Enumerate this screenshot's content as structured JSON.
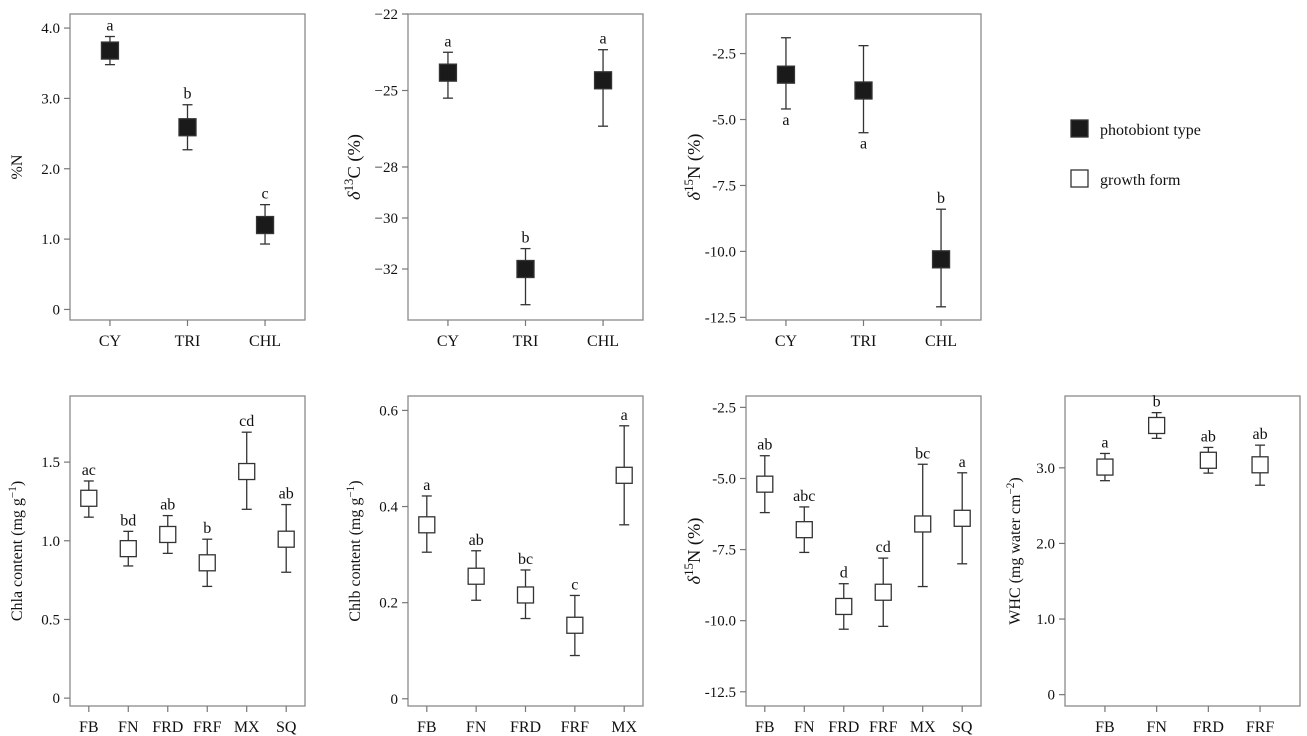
{
  "legend": {
    "items": [
      {
        "label": "photobiont type",
        "marker": "filled"
      },
      {
        "label": "growth form",
        "marker": "open"
      }
    ]
  },
  "colors": {
    "filled_marker": "#1a1a1a",
    "open_marker_fill": "#ffffff",
    "marker_stroke": "#333333",
    "frame": "#8a8a8a"
  },
  "chart_data": [
    {
      "id": "N",
      "type": "scatter",
      "grouping": "photobiont type",
      "marker": "filled",
      "ylabel_parts": [
        {
          "t": "%N"
        }
      ],
      "ylim": [
        -0.15,
        4.2
      ],
      "yticks": [
        0,
        1.0,
        2.0,
        3.0,
        4.0
      ],
      "ytick_labels": [
        "0",
        "1.0",
        "2.0",
        "3.0",
        "4.0"
      ],
      "categories": [
        "CY",
        "TRI",
        "CHL"
      ],
      "values": [
        3.68,
        2.59,
        1.2
      ],
      "error_low": [
        3.48,
        2.27,
        0.93
      ],
      "error_high": [
        3.88,
        2.91,
        1.49
      ],
      "letters": [
        "a",
        "b",
        "c"
      ],
      "letter_pos": [
        "above",
        "above",
        "above"
      ]
    },
    {
      "id": "d13C",
      "type": "scatter",
      "grouping": "photobiont type",
      "marker": "filled",
      "ylabel_parts": [
        {
          "t": "δ",
          "i": true
        },
        {
          "t": "13",
          "sup": true
        },
        {
          "t": "C (%)"
        }
      ],
      "ylim": [
        -34.0,
        -22.0
      ],
      "yticks": [
        -22,
        -25,
        -28,
        -30,
        -32
      ],
      "ytick_labels": [
        "−22",
        "−25",
        "−28",
        "−30",
        "−32"
      ],
      "categories": [
        "CY",
        "TRI",
        "CHL"
      ],
      "values": [
        -24.3,
        -32.0,
        -24.6
      ],
      "error_low": [
        -25.3,
        -33.4,
        -26.4
      ],
      "error_high": [
        -23.5,
        -31.2,
        -23.4
      ],
      "letters": [
        "a",
        "b",
        "a"
      ],
      "letter_pos": [
        "above",
        "above",
        "above"
      ]
    },
    {
      "id": "d15N_photobiont",
      "type": "scatter",
      "grouping": "photobiont type",
      "marker": "filled",
      "ylabel_parts": [
        {
          "t": "δ",
          "i": true
        },
        {
          "t": "15",
          "sup": true
        },
        {
          "t": "N (%)"
        }
      ],
      "ylim": [
        -12.6,
        -1.0
      ],
      "yticks": [
        -2.5,
        -5.0,
        -7.5,
        -10.0,
        -12.5
      ],
      "ytick_labels": [
        "-2.5",
        "-5.0",
        "-7.5",
        "-10.0",
        "-12.5"
      ],
      "categories": [
        "CY",
        "TRI",
        "CHL"
      ],
      "values": [
        -3.3,
        -3.9,
        -10.3
      ],
      "error_low": [
        -4.6,
        -5.5,
        -12.1
      ],
      "error_high": [
        -1.9,
        -2.2,
        -8.4
      ],
      "letters": [
        "a",
        "a",
        "b"
      ],
      "letter_pos": [
        "below",
        "below",
        "above"
      ]
    },
    {
      "id": "Chla",
      "type": "scatter",
      "grouping": "growth form",
      "marker": "open",
      "ylabel_parts": [
        {
          "t": "Chla content (mg g"
        },
        {
          "t": "−1",
          "sup": true
        },
        {
          "t": ")"
        }
      ],
      "ylim": [
        -0.05,
        1.92
      ],
      "yticks": [
        0,
        0.5,
        1.0,
        1.5
      ],
      "ytick_labels": [
        "0",
        "0.5",
        "1.0",
        "1.5"
      ],
      "categories": [
        "FB",
        "FN",
        "FRD",
        "FRF",
        "MX",
        "SQ"
      ],
      "values": [
        1.27,
        0.95,
        1.04,
        0.86,
        1.44,
        1.01
      ],
      "error_low": [
        1.15,
        0.84,
        0.92,
        0.71,
        1.2,
        0.8
      ],
      "error_high": [
        1.38,
        1.06,
        1.16,
        1.01,
        1.69,
        1.23
      ],
      "letters": [
        "ac",
        "bd",
        "ab",
        "b",
        "cd",
        "ab"
      ],
      "letter_pos": [
        "above",
        "above",
        "above",
        "above",
        "above",
        "above"
      ]
    },
    {
      "id": "Chlb",
      "type": "scatter",
      "grouping": "growth form",
      "marker": "open",
      "ylabel_parts": [
        {
          "t": "Chlb content (mg g"
        },
        {
          "t": "−1",
          "sup": true
        },
        {
          "t": ")"
        }
      ],
      "ylim": [
        -0.015,
        0.63
      ],
      "yticks": [
        0,
        0.2,
        0.4,
        0.6
      ],
      "ytick_labels": [
        "0",
        "0.2",
        "0.4",
        "0.6"
      ],
      "categories": [
        "FB",
        "FN",
        "FRD",
        "FRF",
        "MX"
      ],
      "values": [
        0.362,
        0.255,
        0.216,
        0.153,
        0.465
      ],
      "error_low": [
        0.305,
        0.205,
        0.167,
        0.09,
        0.362
      ],
      "error_high": [
        0.422,
        0.308,
        0.268,
        0.215,
        0.568
      ],
      "letters": [
        "a",
        "ab",
        "bc",
        "c",
        "a"
      ],
      "letter_pos": [
        "above",
        "above",
        "above",
        "above",
        "above"
      ]
    },
    {
      "id": "d15N_growth",
      "type": "scatter",
      "grouping": "growth form",
      "marker": "open",
      "ylabel_parts": [
        {
          "t": "δ",
          "i": true
        },
        {
          "t": "15",
          "sup": true
        },
        {
          "t": "N (%)"
        }
      ],
      "ylim": [
        -13.0,
        -2.1
      ],
      "yticks": [
        -2.5,
        -5.0,
        -7.5,
        -10.0,
        -12.5
      ],
      "ytick_labels": [
        "-2.5",
        "-5.0",
        "-7.5",
        "-10.0",
        "-12.5"
      ],
      "categories": [
        "FB",
        "FN",
        "FRD",
        "FRF",
        "MX",
        "SQ"
      ],
      "values": [
        -5.2,
        -6.8,
        -9.5,
        -9.0,
        -6.6,
        -6.4
      ],
      "error_low": [
        -6.2,
        -7.6,
        -10.3,
        -10.2,
        -8.8,
        -8.0
      ],
      "error_high": [
        -4.2,
        -6.0,
        -8.7,
        -7.8,
        -4.5,
        -4.8
      ],
      "letters": [
        "ab",
        "abc",
        "d",
        "cd",
        "bc",
        "a"
      ],
      "letter_pos": [
        "above",
        "above",
        "above",
        "above",
        "above",
        "above"
      ]
    },
    {
      "id": "WHC",
      "type": "scatter",
      "grouping": "growth form",
      "marker": "open",
      "ylabel_parts": [
        {
          "t": "WHC (mg water cm"
        },
        {
          "t": "−2",
          "sup": true
        },
        {
          "t": ")"
        }
      ],
      "ylim": [
        -0.15,
        3.95
      ],
      "yticks": [
        0,
        1.0,
        2.0,
        3.0
      ],
      "ytick_labels": [
        "0",
        "1.0",
        "2.0",
        "3.0"
      ],
      "categories": [
        "FB",
        "FN",
        "FRD",
        "FRF"
      ],
      "values": [
        3.01,
        3.56,
        3.1,
        3.04
      ],
      "error_low": [
        2.83,
        3.39,
        2.93,
        2.77
      ],
      "error_high": [
        3.19,
        3.73,
        3.27,
        3.3
      ],
      "letters": [
        "a",
        "b",
        "ab",
        "ab"
      ],
      "letter_pos": [
        "above",
        "above",
        "above",
        "above"
      ]
    }
  ]
}
